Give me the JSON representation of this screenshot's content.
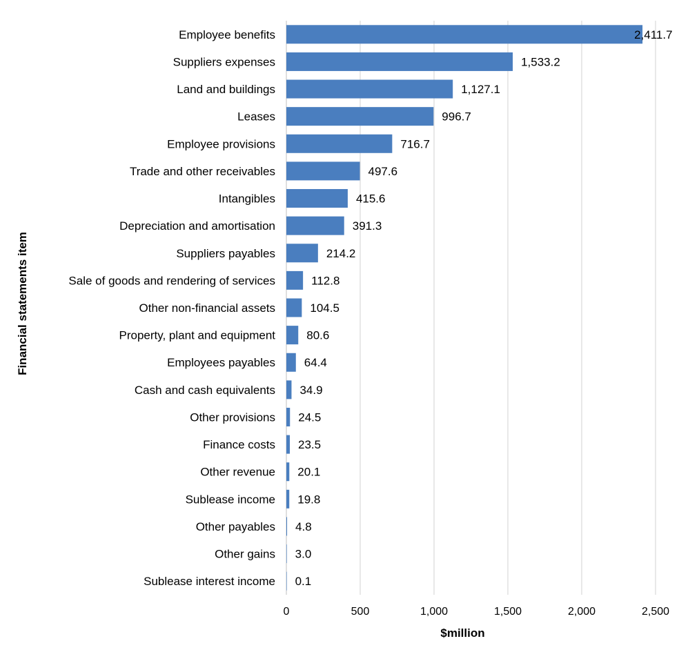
{
  "chart_data": {
    "type": "bar",
    "orientation": "horizontal",
    "categories": [
      "Employee benefits",
      "Suppliers expenses",
      "Land and buildings",
      "Leases",
      "Employee provisions",
      "Trade and other receivables",
      "Intangibles",
      "Depreciation and amortisation",
      "Suppliers payables",
      "Sale of goods and rendering of services",
      "Other non-financial assets",
      "Property, plant and equipment",
      "Employees payables",
      "Cash and cash equivalents",
      "Other provisions",
      "Finance costs",
      "Other revenue",
      "Sublease income",
      "Other payables",
      "Other gains",
      "Sublease interest income"
    ],
    "values": [
      2411.7,
      1533.2,
      1127.1,
      996.7,
      716.7,
      497.6,
      415.6,
      391.3,
      214.2,
      112.8,
      104.5,
      80.6,
      64.4,
      34.9,
      24.5,
      23.5,
      20.1,
      19.8,
      4.8,
      3.0,
      0.1
    ],
    "value_labels": [
      "2,411.7",
      "1,533.2",
      "1,127.1",
      "996.7",
      "716.7",
      "497.6",
      "415.6",
      "391.3",
      "214.2",
      "112.8",
      "104.5",
      "80.6",
      "64.4",
      "34.9",
      "24.5",
      "23.5",
      "20.1",
      "19.8",
      "4.8",
      "3.0",
      "0.1"
    ],
    "xlabel": "$million",
    "ylabel": "Financial statements item",
    "xlim": [
      0,
      2500
    ],
    "xticks": [
      0,
      500,
      1000,
      1500,
      2000,
      2500
    ],
    "xtick_labels": [
      "0",
      "500",
      "1,000",
      "1,500",
      "2,000",
      "2,500"
    ],
    "grid": "vertical",
    "legend": "none",
    "bar_color": "#4a7ebf"
  }
}
